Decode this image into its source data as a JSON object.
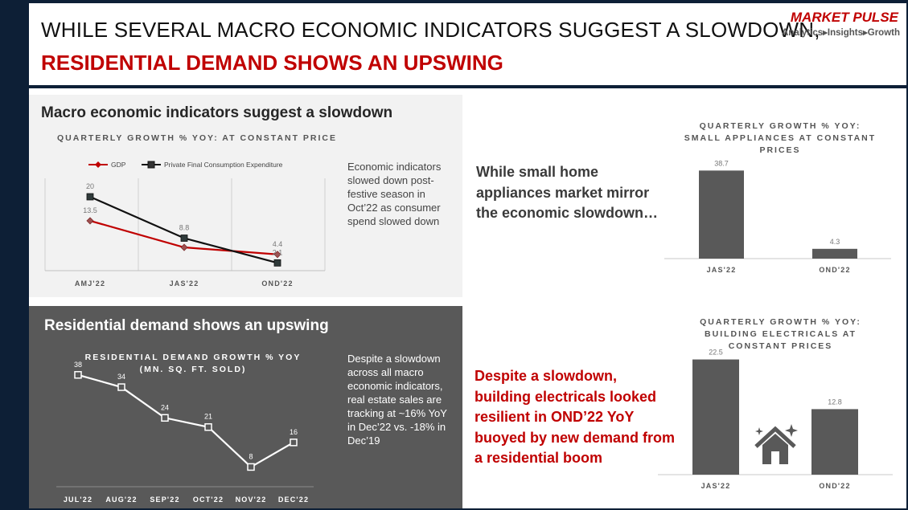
{
  "header": {
    "title_line1": "WHILE SEVERAL MACRO ECONOMIC INDICATORS SUGGEST A SLOWDOWN,",
    "title_line2": "RESIDENTIAL DEMAND SHOWS AN UPSWING",
    "logo_name": "MARKET PULSE",
    "logo_tagline": "Analytics▸Insights▸Growth"
  },
  "colors": {
    "accent_red": "#c00000",
    "navy": "#0d1f36",
    "bar_gray": "#595959",
    "panel_light": "#f2f2f2",
    "panel_dark": "#595959"
  },
  "macro_panel": {
    "title": "Macro economic indicators suggest a slowdown",
    "note": "Economic indicators slowed down post-festive season in Oct’22 as consumer spend slowed down"
  },
  "residential_panel": {
    "title": "Residential demand shows an upswing",
    "note": "Despite a slowdown across all macro economic indicators, real estate sales are tracking at ~16% YoY in Dec’22 vs. -18% in Dec’19"
  },
  "small_appliances_text": "While small home appliances market mirror the economic slowdown…",
  "building_electricals_text": "Despite a slowdown, building electricals looked resilient in OND’22 YoY buoyed by new demand from a residential boom",
  "house_icon": "house-sparkle-icon",
  "chart_data": [
    {
      "type": "line",
      "title": "QUARTERLY GROWTH % YOY: AT CONSTANT PRICE",
      "categories": [
        "AMJ'22",
        "JAS'22",
        "OND'22"
      ],
      "series": [
        {
          "name": "GDP",
          "values": [
            13.5,
            6.3,
            4.4
          ],
          "labels": [
            "13.5",
            "",
            "4.4"
          ],
          "color": "#c00000"
        },
        {
          "name": "Private Final Consumption Expenditure",
          "values": [
            20,
            8.8,
            2.1
          ],
          "labels": [
            "20",
            "8.8",
            "2.1"
          ],
          "color": "#111111"
        }
      ],
      "ylim": [
        0,
        25
      ],
      "grid": "vertical",
      "legend": "top-left"
    },
    {
      "type": "line",
      "title": "RESIDENTIAL DEMAND GROWTH % YOY (MN. SQ. FT. SOLD)",
      "categories": [
        "JUL'22",
        "AUG'22",
        "SEP'22",
        "OCT'22",
        "NOV'22",
        "DEC'22"
      ],
      "values": [
        38,
        34,
        24,
        21,
        8,
        16
      ],
      "ylim": [
        0,
        45
      ]
    },
    {
      "type": "bar",
      "title": "QUARTERLY GROWTH % YOY: SMALL APPLIANCES AT CONSTANT PRICES",
      "categories": [
        "JAS'22",
        "OND'22"
      ],
      "values": [
        38.7,
        4.3
      ],
      "ylim": [
        0,
        42
      ]
    },
    {
      "type": "bar",
      "title": "QUARTERLY GROWTH % YOY: BUILDING ELECTRICALS AT CONSTANT PRICES",
      "categories": [
        "JAS'22",
        "OND'22"
      ],
      "values": [
        22.5,
        12.8
      ],
      "ylim": [
        0,
        24
      ]
    }
  ]
}
